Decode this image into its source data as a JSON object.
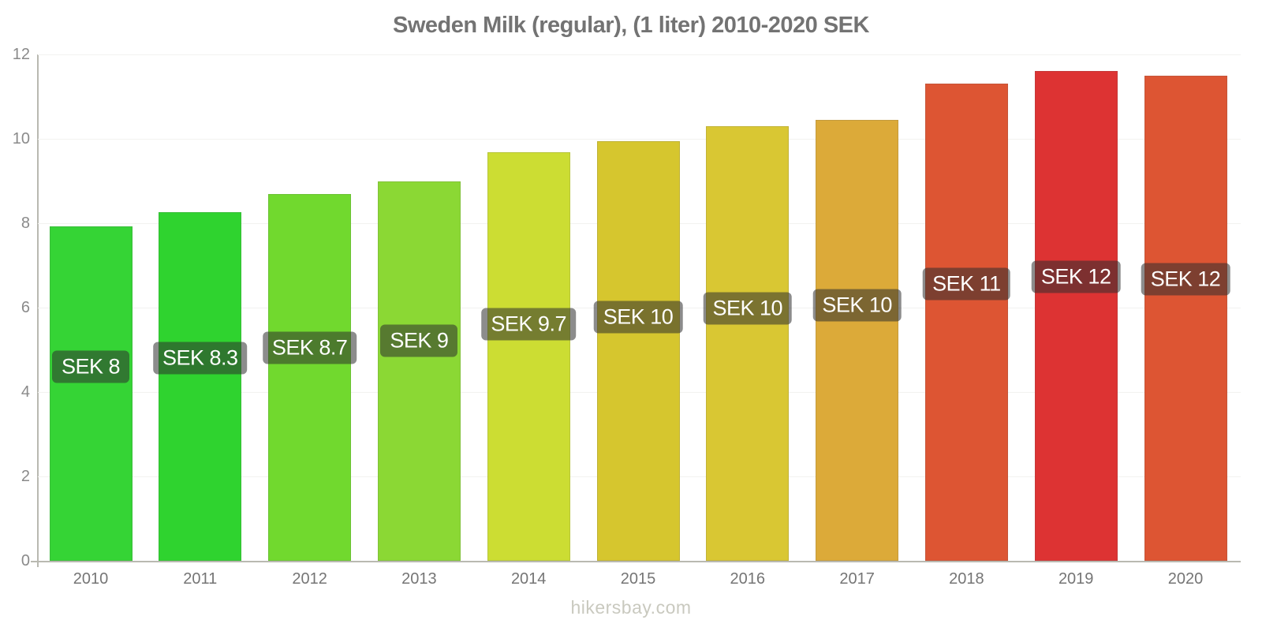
{
  "title": "Sweden Milk (regular), (1 liter) 2010-2020 SEK",
  "footer": "hikersbay.com",
  "colors": {
    "title_text": "#737373",
    "axis_line": "#b9b9b1",
    "tick_text": "#757575",
    "gridline": "#f2f2f0",
    "bar_label_bg": "rgba(45,45,45,0.55)",
    "bar_label_text": "#ffffff",
    "footer_text": "#c9c9bf"
  },
  "chart_data": {
    "type": "bar",
    "title": "Sweden Milk (regular), (1 liter) 2010-2020 SEK",
    "xlabel": "",
    "ylabel": "",
    "categories": [
      "2010",
      "2011",
      "2012",
      "2013",
      "2014",
      "2015",
      "2016",
      "2017",
      "2018",
      "2019",
      "2020"
    ],
    "values": [
      7.93,
      8.27,
      8.69,
      8.99,
      9.68,
      9.95,
      10.3,
      10.45,
      11.31,
      11.61,
      11.5
    ],
    "bar_labels": [
      "SEK 8",
      "SEK 8.3",
      "SEK 8.7",
      "SEK 9",
      "SEK 9.7",
      "SEK 10",
      "SEK 10",
      "SEK 10",
      "SEK 11",
      "SEK 12",
      "SEK 12"
    ],
    "bar_colors": [
      "#35d435",
      "#2fd32f",
      "#71d92e",
      "#8bd834",
      "#ccdd33",
      "#d6c62e",
      "#d9c733",
      "#dcaa39",
      "#dd5533",
      "#dd3333",
      "#dd5533"
    ],
    "ylim": [
      0,
      12
    ],
    "yticks": [
      0,
      2,
      4,
      6,
      8,
      10,
      12
    ],
    "grid": "horizontal",
    "legend": "none",
    "watermark": "hikersbay.com"
  }
}
